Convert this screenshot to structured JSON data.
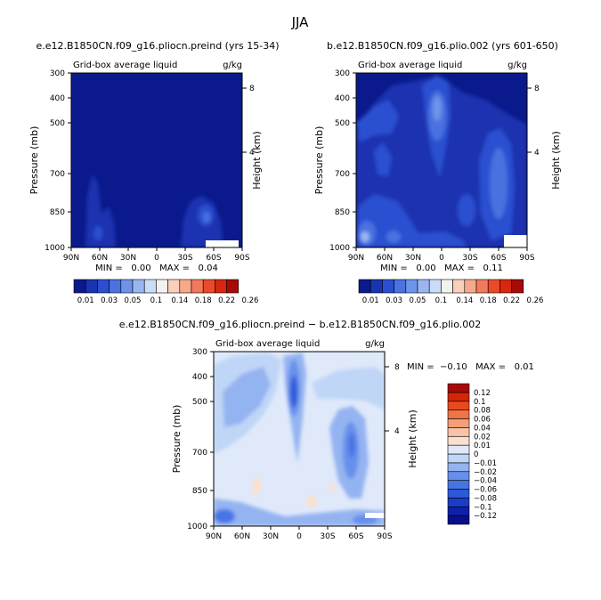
{
  "figure": {
    "title": "JJA"
  },
  "panels": [
    {
      "id": "left",
      "title": "e.e12.B1850CN.f09_g16.pliocn.preind (yrs 15-34)",
      "subtitle_left": "Grid-box average liquid",
      "units": "g/kg",
      "stats": "MIN =   0.00   MAX =   0.04"
    },
    {
      "id": "right",
      "title": "b.e12.B1850CN.f09_g16.plio.002 (yrs 601-650)",
      "subtitle_left": "Grid-box average liquid",
      "units": "g/kg",
      "stats": "MIN =   0.00   MAX =   0.11"
    },
    {
      "id": "bottom",
      "title": "e.e12.B1850CN.f09_g16.pliocn.preind − b.e12.B1850CN.f09_g16.plio.002",
      "subtitle_left": "Grid-box average liquid",
      "units": "g/kg",
      "stats": "MIN =  −0.10   MAX =   0.01"
    }
  ],
  "chart_data": [
    {
      "type": "heatmap",
      "title": "e.e12.B1850CN.f09_g16.pliocn.preind (yrs 15-34)",
      "xlabel": "",
      "ylabel": "Pressure (mb)",
      "y2label": "Height (km)",
      "x_ticks": [
        "90N",
        "60N",
        "30N",
        "0",
        "30S",
        "60S",
        "90S"
      ],
      "y_ticks": [
        "300",
        "400",
        "500",
        "700",
        "850",
        "1000"
      ],
      "y2_ticks": [
        "8",
        "4"
      ],
      "min": 0.0,
      "max": 0.04
    },
    {
      "type": "heatmap",
      "title": "b.e12.B1850CN.f09_g16.plio.002 (yrs 601-650)",
      "xlabel": "",
      "ylabel": "Pressure (mb)",
      "y2label": "Height (km)",
      "x_ticks": [
        "90N",
        "60N",
        "30N",
        "0",
        "30S",
        "60S",
        "90S"
      ],
      "y_ticks": [
        "300",
        "400",
        "500",
        "700",
        "850",
        "1000"
      ],
      "y2_ticks": [
        "8",
        "4"
      ],
      "min": 0.0,
      "max": 0.11
    },
    {
      "type": "heatmap",
      "title": "e.e12.B1850CN.f09_g16.pliocn.preind − b.e12.B1850CN.f09_g16.plio.002",
      "xlabel": "",
      "ylabel": "Pressure (mb)",
      "y2label": "Height (km)",
      "x_ticks": [
        "90N",
        "60N",
        "30N",
        "0",
        "30S",
        "60S",
        "90S"
      ],
      "y_ticks": [
        "300",
        "400",
        "500",
        "700",
        "850",
        "1000"
      ],
      "y2_ticks": [
        "8",
        "4"
      ],
      "min": -0.1,
      "max": 0.01
    }
  ],
  "colorbar_top": {
    "colors": [
      "#0a1a8c",
      "#1b33b0",
      "#2b4fd0",
      "#4a72e0",
      "#6e94ea",
      "#9ab6f2",
      "#c9dcf8",
      "#f4f2ee",
      "#fad0bb",
      "#f7a98a",
      "#f27a5a",
      "#ea4a2a",
      "#d8260f",
      "#a80a06"
    ],
    "labels": [
      "0.01",
      "0.03",
      "0.05",
      "0.1",
      "0.14",
      "0.18",
      "0.22",
      "0.26"
    ]
  },
  "colorbar_bottom": {
    "colors": [
      "#080f8a",
      "#0d20a8",
      "#1a3cc6",
      "#2d58da",
      "#4674e3",
      "#6790eb",
      "#94b3f1",
      "#c0d6f7",
      "#dfe9fa",
      "#fbe0cf",
      "#f8c3a6",
      "#f59e77",
      "#ef7447",
      "#e84a20",
      "#d42508",
      "#a80a06"
    ],
    "labels": [
      "0.12",
      "0.1",
      "0.08",
      "0.06",
      "0.04",
      "0.02",
      "0.01",
      "0",
      "−0.01",
      "−0.02",
      "−0.04",
      "−0.06",
      "−0.08",
      "−0.1",
      "−0.12"
    ]
  }
}
